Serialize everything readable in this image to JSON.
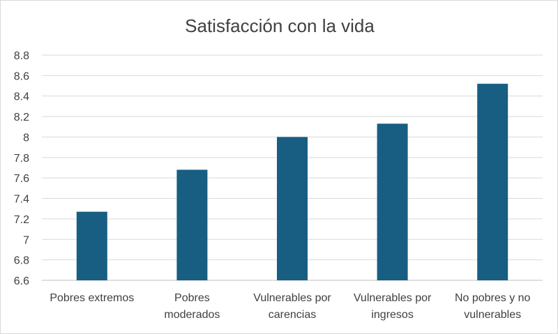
{
  "chart_data": {
    "type": "bar",
    "title": "Satisfacción con la vida",
    "xlabel": "",
    "ylabel": "",
    "categories": [
      [
        "Pobres extremos"
      ],
      [
        "Pobres",
        "moderados"
      ],
      [
        "Vulnerables por",
        "carencias"
      ],
      [
        "Vulnerables por",
        "ingresos"
      ],
      [
        "No pobres y no",
        "vulnerables"
      ]
    ],
    "values": [
      7.27,
      7.68,
      8.0,
      8.13,
      8.52
    ],
    "ylim": [
      6.6,
      8.8
    ],
    "yticks": [
      "6.6",
      "6.8",
      "7",
      "7.2",
      "7.4",
      "7.6",
      "7.8",
      "8",
      "8.2",
      "8.4",
      "8.6",
      "8.8"
    ],
    "grid": true,
    "legend": "none",
    "colors": {
      "bar": "#175e82",
      "grid": "#d9d9d9",
      "text": "#404040"
    }
  }
}
